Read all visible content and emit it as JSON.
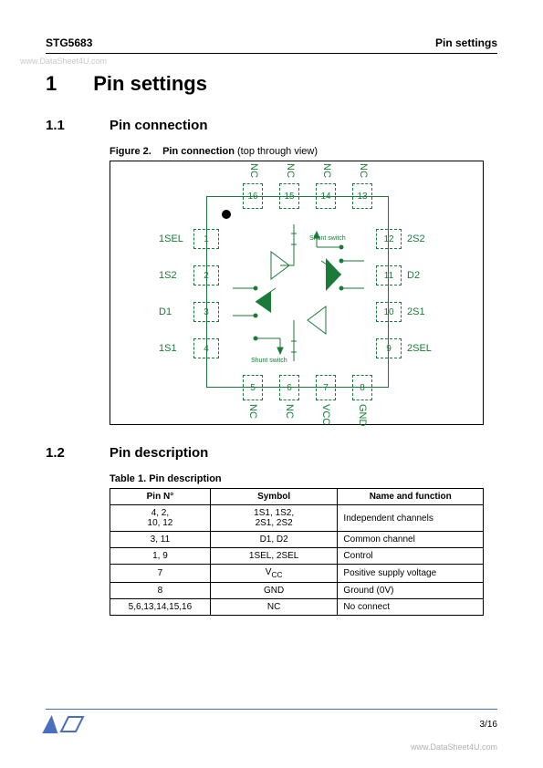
{
  "watermark_tl": "www.DataSheet4U.com",
  "watermark_br": "www.DataSheet4U.com",
  "header": {
    "left": "STG5683",
    "right": "Pin settings"
  },
  "h1": {
    "num": "1",
    "title": "Pin settings"
  },
  "h2a": {
    "num": "1.1",
    "title": "Pin connection"
  },
  "h2b": {
    "num": "1.2",
    "title": "Pin description"
  },
  "figure": {
    "label": "Figure 2.",
    "title": "Pin connection",
    "subtitle": " (top through view)",
    "top_pins": [
      {
        "n": "16",
        "lbl": "NC"
      },
      {
        "n": "15",
        "lbl": "NC"
      },
      {
        "n": "14",
        "lbl": "NC"
      },
      {
        "n": "13",
        "lbl": "NC"
      }
    ],
    "left_pins": [
      {
        "n": "1",
        "lbl": "1SEL"
      },
      {
        "n": "2",
        "lbl": "1S2"
      },
      {
        "n": "3",
        "lbl": "D1"
      },
      {
        "n": "4",
        "lbl": "1S1"
      }
    ],
    "right_pins": [
      {
        "n": "12",
        "lbl": "2S2"
      },
      {
        "n": "11",
        "lbl": "D2"
      },
      {
        "n": "10",
        "lbl": "2S1"
      },
      {
        "n": "9",
        "lbl": "2SEL"
      }
    ],
    "bottom_pins": [
      {
        "n": "5",
        "lbl": "NC"
      },
      {
        "n": "6",
        "lbl": "NC"
      },
      {
        "n": "7",
        "lbl": "VCC"
      },
      {
        "n": "8",
        "lbl": "GND"
      }
    ],
    "shunt_top": "Shunt switch",
    "shunt_bot": "Shunt switch",
    "colors": {
      "green": "#1a7a3a",
      "black": "#000000"
    }
  },
  "table": {
    "caption": "Table 1. Pin description",
    "headers": [
      "Pin N°",
      "Symbol",
      "Name and function"
    ],
    "rows": [
      {
        "pin": "4, 2,\n10, 12",
        "sym": "1S1,  1S2,\n2S1, 2S2",
        "func": "Independent channels"
      },
      {
        "pin": "3, 11",
        "sym": "D1, D2",
        "func": "Common channel"
      },
      {
        "pin": "1, 9",
        "sym": "1SEL, 2SEL",
        "func": "Control"
      },
      {
        "pin": "7",
        "sym": "VCC",
        "func": "Positive supply voltage"
      },
      {
        "pin": "8",
        "sym": "GND",
        "func": "Ground (0V)"
      },
      {
        "pin": "5,6,13,14,15,16",
        "sym": "NC",
        "func": "No connect"
      }
    ],
    "col_widths": [
      "110px",
      "140px",
      "160px"
    ]
  },
  "footer": {
    "page": "3/16"
  }
}
